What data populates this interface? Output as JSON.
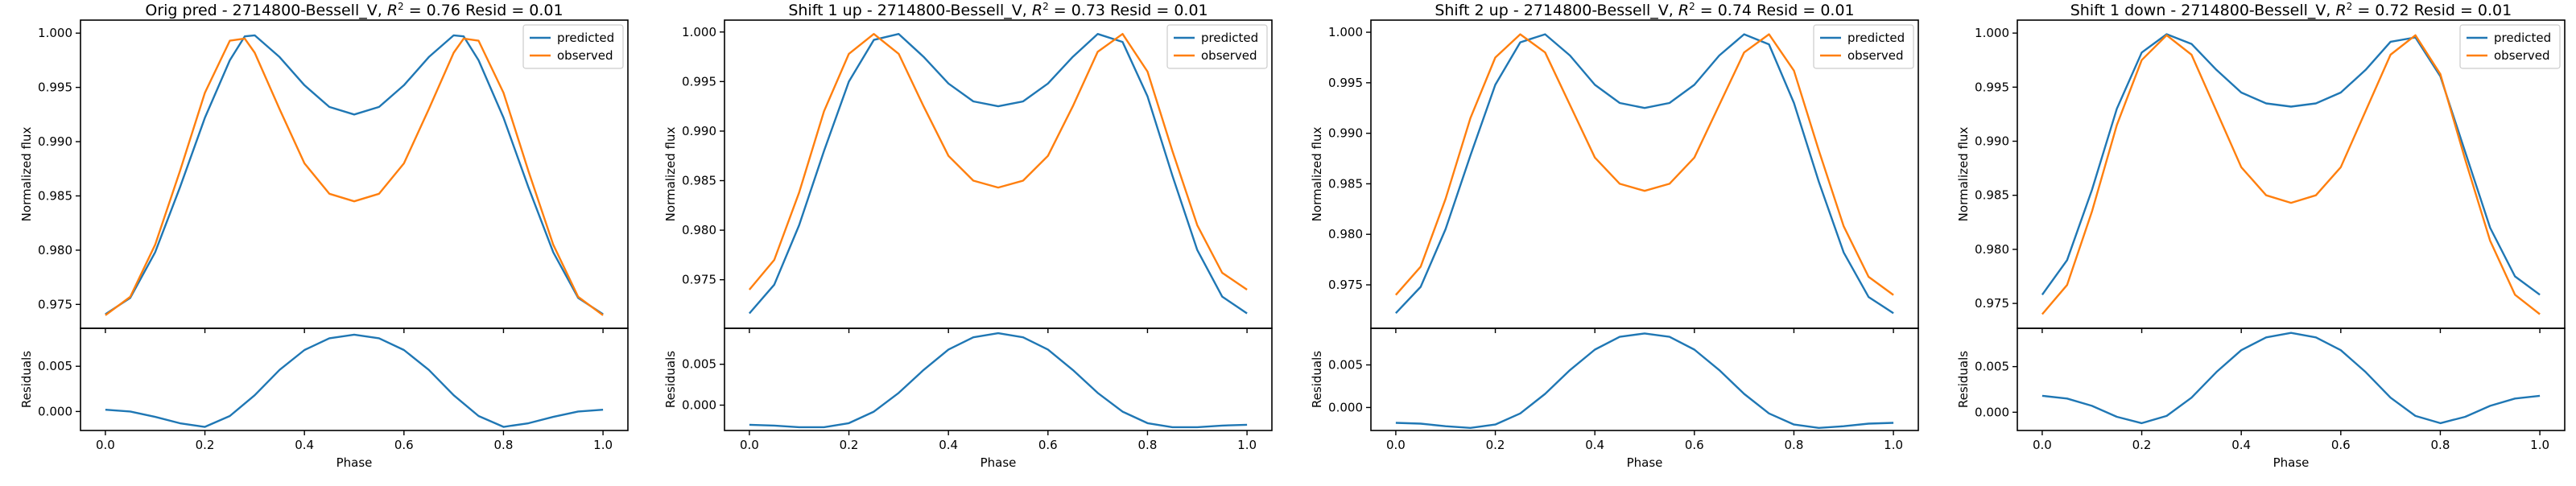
{
  "colors": {
    "predicted": "#1f77b4",
    "observed": "#ff7f0e"
  },
  "chart_data": [
    {
      "type": "line",
      "title": "Orig pred - 2714800-Bessell_V, R² = 0.76 Resid = 0.01",
      "title_parts": {
        "prefix": "Orig pred - 2714800-Bessell_V, ",
        "r2_symbol": "R",
        "r2_exp": "2",
        "suffix": " = 0.76 Resid = 0.01"
      },
      "xlabel": "Phase",
      "ylabel_top": "Normalized flux",
      "ylabel_bottom": "Residuals",
      "xlim": [
        -0.05,
        1.05
      ],
      "xticks": [
        "0.0",
        "0.2",
        "0.4",
        "0.6",
        "0.8",
        "1.0"
      ],
      "ylim_top": [
        0.9728,
        1.0012
      ],
      "yticks_top": [
        "0.975",
        "0.980",
        "0.985",
        "0.990",
        "0.995",
        "1.000"
      ],
      "ylim_bottom": [
        -0.0021,
        0.0092
      ],
      "yticks_bottom": [
        "0.000",
        "0.005"
      ],
      "legend": [
        "predicted",
        "observed"
      ],
      "series": [
        {
          "name": "predicted",
          "x": [
            0.0,
            0.05,
            0.1,
            0.15,
            0.2,
            0.25,
            0.28,
            0.3,
            0.35,
            0.4,
            0.45,
            0.5,
            0.55,
            0.6,
            0.65,
            0.7,
            0.72,
            0.75,
            0.8,
            0.85,
            0.9,
            0.95,
            1.0
          ],
          "y": [
            0.9741,
            0.9756,
            0.9798,
            0.9858,
            0.9922,
            0.9975,
            0.9997,
            0.9998,
            0.9978,
            0.9952,
            0.9932,
            0.9925,
            0.9932,
            0.9952,
            0.9978,
            0.9998,
            0.9997,
            0.9975,
            0.9922,
            0.9858,
            0.9798,
            0.9756,
            0.9741
          ]
        },
        {
          "name": "observed",
          "x": [
            0.0,
            0.05,
            0.1,
            0.15,
            0.2,
            0.25,
            0.28,
            0.3,
            0.35,
            0.4,
            0.45,
            0.5,
            0.55,
            0.6,
            0.65,
            0.7,
            0.72,
            0.75,
            0.8,
            0.85,
            0.9,
            0.95,
            1.0
          ],
          "y": [
            0.974,
            0.9757,
            0.9805,
            0.9873,
            0.9945,
            0.9993,
            0.9995,
            0.9982,
            0.993,
            0.988,
            0.9852,
            0.9845,
            0.9852,
            0.988,
            0.993,
            0.9982,
            0.9995,
            0.9993,
            0.9945,
            0.9873,
            0.9805,
            0.9757,
            0.974
          ]
        }
      ],
      "residuals": {
        "x": [
          0.0,
          0.05,
          0.1,
          0.15,
          0.2,
          0.25,
          0.3,
          0.35,
          0.4,
          0.45,
          0.5,
          0.55,
          0.6,
          0.65,
          0.7,
          0.75,
          0.8,
          0.85,
          0.9,
          0.95,
          1.0
        ],
        "y": [
          0.0002,
          0.0,
          -0.0006,
          -0.0013,
          -0.0017,
          -0.0005,
          0.0018,
          0.0046,
          0.0068,
          0.0081,
          0.0085,
          0.0081,
          0.0068,
          0.0046,
          0.0018,
          -0.0005,
          -0.0017,
          -0.0013,
          -0.0006,
          0.0,
          0.0002
        ]
      }
    },
    {
      "type": "line",
      "title": "Shift 1 up - 2714800-Bessell_V, R² = 0.73 Resid = 0.01",
      "title_parts": {
        "prefix": "Shift 1 up - 2714800-Bessell_V, ",
        "r2_symbol": "R",
        "r2_exp": "2",
        "suffix": " = 0.73 Resid = 0.01"
      },
      "xlabel": "Phase",
      "ylabel_top": "Normalized flux",
      "ylabel_bottom": "Residuals",
      "xlim": [
        -0.05,
        1.05
      ],
      "xticks": [
        "0.0",
        "0.2",
        "0.4",
        "0.6",
        "0.8",
        "1.0"
      ],
      "ylim_top": [
        0.9701,
        1.0012
      ],
      "yticks_top": [
        "0.975",
        "0.980",
        "0.985",
        "0.990",
        "0.995",
        "1.000"
      ],
      "ylim_bottom": [
        -0.0031,
        0.0094
      ],
      "yticks_bottom": [
        "0.000",
        "0.005"
      ],
      "legend": [
        "predicted",
        "observed"
      ],
      "series": [
        {
          "name": "predicted",
          "x": [
            0.0,
            0.05,
            0.1,
            0.15,
            0.2,
            0.25,
            0.3,
            0.35,
            0.4,
            0.45,
            0.5,
            0.55,
            0.6,
            0.65,
            0.7,
            0.75,
            0.8,
            0.85,
            0.9,
            0.95,
            1.0
          ],
          "y": [
            0.9716,
            0.9745,
            0.9805,
            0.988,
            0.995,
            0.9992,
            0.9998,
            0.9975,
            0.9948,
            0.993,
            0.9925,
            0.993,
            0.9948,
            0.9975,
            0.9998,
            0.999,
            0.9935,
            0.9855,
            0.978,
            0.9733,
            0.9716
          ]
        },
        {
          "name": "observed",
          "x": [
            0.0,
            0.05,
            0.1,
            0.15,
            0.2,
            0.25,
            0.3,
            0.35,
            0.4,
            0.45,
            0.5,
            0.55,
            0.6,
            0.65,
            0.7,
            0.75,
            0.8,
            0.85,
            0.9,
            0.95,
            1.0
          ],
          "y": [
            0.974,
            0.977,
            0.9838,
            0.992,
            0.9978,
            0.9998,
            0.9978,
            0.9925,
            0.9875,
            0.985,
            0.9843,
            0.985,
            0.9875,
            0.9925,
            0.998,
            0.9998,
            0.996,
            0.988,
            0.9805,
            0.9757,
            0.974
          ]
        }
      ],
      "residuals": {
        "x": [
          0.0,
          0.05,
          0.1,
          0.15,
          0.2,
          0.25,
          0.3,
          0.35,
          0.4,
          0.45,
          0.5,
          0.55,
          0.6,
          0.65,
          0.7,
          0.75,
          0.8,
          0.85,
          0.9,
          0.95,
          1.0
        ],
        "y": [
          -0.0024,
          -0.0025,
          -0.0027,
          -0.0027,
          -0.0022,
          -0.0008,
          0.0015,
          0.0043,
          0.0068,
          0.0083,
          0.0088,
          0.0083,
          0.0068,
          0.0043,
          0.0015,
          -0.0008,
          -0.0022,
          -0.0027,
          -0.0027,
          -0.0025,
          -0.0024
        ]
      }
    },
    {
      "type": "line",
      "title": "Shift 2 up - 2714800-Bessell_V, R² = 0.74 Resid = 0.01",
      "title_parts": {
        "prefix": "Shift 2 up - 2714800-Bessell_V, ",
        "r2_symbol": "R",
        "r2_exp": "2",
        "suffix": " = 0.74 Resid = 0.01"
      },
      "xlabel": "Phase",
      "ylabel_top": "Normalized flux",
      "ylabel_bottom": "Residuals",
      "xlim": [
        -0.05,
        1.05
      ],
      "xticks": [
        "0.0",
        "0.2",
        "0.4",
        "0.6",
        "0.8",
        "1.0"
      ],
      "ylim_top": [
        0.9707,
        1.0012
      ],
      "yticks_top": [
        "0.975",
        "0.980",
        "0.985",
        "0.990",
        "0.995",
        "1.000"
      ],
      "ylim_bottom": [
        -0.0027,
        0.0093
      ],
      "yticks_bottom": [
        "0.000",
        "0.005"
      ],
      "legend": [
        "predicted",
        "observed"
      ],
      "series": [
        {
          "name": "predicted",
          "x": [
            0.0,
            0.05,
            0.1,
            0.15,
            0.2,
            0.25,
            0.3,
            0.35,
            0.4,
            0.45,
            0.5,
            0.55,
            0.6,
            0.65,
            0.7,
            0.75,
            0.8,
            0.85,
            0.9,
            0.95,
            1.0
          ],
          "y": [
            0.9722,
            0.9748,
            0.9805,
            0.9878,
            0.9948,
            0.999,
            0.9998,
            0.9977,
            0.9948,
            0.993,
            0.9925,
            0.993,
            0.9948,
            0.9977,
            0.9998,
            0.9988,
            0.993,
            0.9852,
            0.9782,
            0.9738,
            0.9722
          ]
        },
        {
          "name": "observed",
          "x": [
            0.0,
            0.05,
            0.1,
            0.15,
            0.2,
            0.25,
            0.3,
            0.35,
            0.4,
            0.45,
            0.5,
            0.55,
            0.6,
            0.65,
            0.7,
            0.75,
            0.8,
            0.85,
            0.9,
            0.95,
            1.0
          ],
          "y": [
            0.974,
            0.9768,
            0.9835,
            0.9915,
            0.9975,
            0.9998,
            0.998,
            0.9928,
            0.9876,
            0.985,
            0.9843,
            0.985,
            0.9876,
            0.9928,
            0.998,
            0.9998,
            0.9962,
            0.9883,
            0.9808,
            0.9758,
            0.974
          ]
        }
      ],
      "residuals": {
        "x": [
          0.0,
          0.05,
          0.1,
          0.15,
          0.2,
          0.25,
          0.3,
          0.35,
          0.4,
          0.45,
          0.5,
          0.55,
          0.6,
          0.65,
          0.7,
          0.75,
          0.8,
          0.85,
          0.9,
          0.95,
          1.0
        ],
        "y": [
          -0.0018,
          -0.0019,
          -0.0022,
          -0.0024,
          -0.002,
          -0.0007,
          0.0016,
          0.0044,
          0.0068,
          0.0083,
          0.0087,
          0.0083,
          0.0068,
          0.0044,
          0.0016,
          -0.0007,
          -0.002,
          -0.0024,
          -0.0022,
          -0.0019,
          -0.0018
        ]
      }
    },
    {
      "type": "line",
      "title": "Shift 1 down - 2714800-Bessell_V, R² = 0.72 Resid = 0.01",
      "title_parts": {
        "prefix": "Shift 1 down - 2714800-Bessell_V, ",
        "r2_symbol": "R",
        "r2_exp": "2",
        "suffix": " = 0.72 Resid = 0.01"
      },
      "xlabel": "Phase",
      "ylabel_top": "Normalized flux",
      "ylabel_bottom": "Residuals",
      "xlim": [
        -0.05,
        1.05
      ],
      "xticks": [
        "0.0",
        "0.2",
        "0.4",
        "0.6",
        "0.8",
        "1.0"
      ],
      "ylim_top": [
        0.9727,
        1.0012
      ],
      "yticks_top": [
        "0.975",
        "0.980",
        "0.985",
        "0.990",
        "0.995",
        "1.000"
      ],
      "ylim_bottom": [
        -0.002,
        0.0092
      ],
      "yticks_bottom": [
        "0.000",
        "0.005"
      ],
      "legend": [
        "predicted",
        "observed"
      ],
      "series": [
        {
          "name": "predicted",
          "x": [
            0.0,
            0.05,
            0.1,
            0.15,
            0.2,
            0.25,
            0.3,
            0.35,
            0.4,
            0.45,
            0.5,
            0.55,
            0.6,
            0.65,
            0.7,
            0.75,
            0.8,
            0.85,
            0.9,
            0.95,
            1.0
          ],
          "y": [
            0.9758,
            0.979,
            0.9855,
            0.993,
            0.9982,
            0.9999,
            0.999,
            0.9966,
            0.9945,
            0.9935,
            0.9932,
            0.9935,
            0.9945,
            0.9966,
            0.9992,
            0.9996,
            0.996,
            0.989,
            0.982,
            0.9775,
            0.9758
          ]
        },
        {
          "name": "observed",
          "x": [
            0.0,
            0.05,
            0.1,
            0.15,
            0.2,
            0.25,
            0.3,
            0.35,
            0.4,
            0.45,
            0.5,
            0.55,
            0.6,
            0.65,
            0.7,
            0.75,
            0.8,
            0.85,
            0.9,
            0.95,
            1.0
          ],
          "y": [
            0.974,
            0.9767,
            0.9835,
            0.9915,
            0.9975,
            0.9998,
            0.998,
            0.9928,
            0.9876,
            0.985,
            0.9843,
            0.985,
            0.9876,
            0.9928,
            0.998,
            0.9998,
            0.9962,
            0.9883,
            0.9808,
            0.9758,
            0.974
          ]
        }
      ],
      "residuals": {
        "x": [
          0.0,
          0.05,
          0.1,
          0.15,
          0.2,
          0.25,
          0.3,
          0.35,
          0.4,
          0.45,
          0.5,
          0.55,
          0.6,
          0.65,
          0.7,
          0.75,
          0.8,
          0.85,
          0.9,
          0.95,
          1.0
        ],
        "y": [
          0.0018,
          0.0015,
          0.0007,
          -0.0005,
          -0.0012,
          -0.0004,
          0.0016,
          0.0044,
          0.0068,
          0.0082,
          0.0087,
          0.0082,
          0.0068,
          0.0044,
          0.0016,
          -0.0004,
          -0.0012,
          -0.0005,
          0.0007,
          0.0015,
          0.0018
        ]
      }
    }
  ]
}
